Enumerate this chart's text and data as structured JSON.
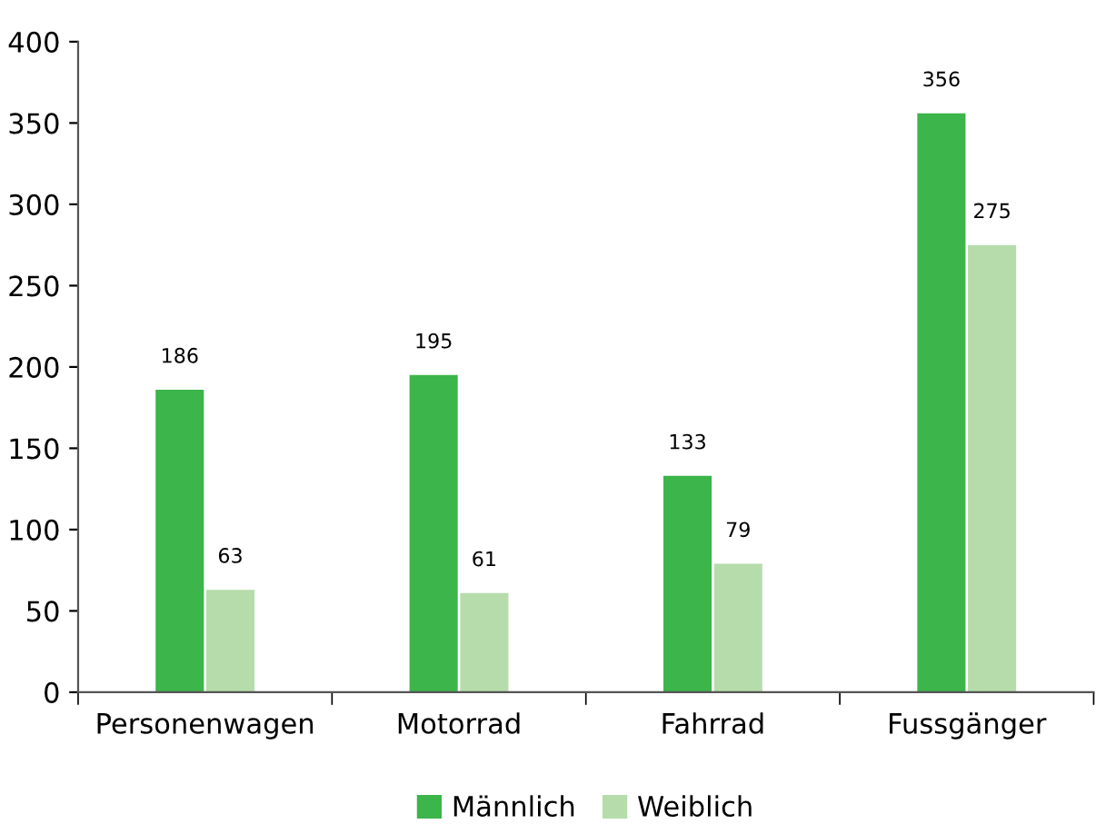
{
  "chart_data": {
    "type": "bar",
    "categories": [
      "Personenwagen",
      "Motorrad",
      "Fahrrad",
      "Fussgänger"
    ],
    "series": [
      {
        "name": "Männlich",
        "color": "#3cb54a",
        "values": [
          186,
          195,
          133,
          356
        ]
      },
      {
        "name": "Weiblich",
        "color": "#b6dcab",
        "values": [
          63,
          61,
          79,
          275
        ]
      }
    ],
    "ylim": [
      0,
      400
    ],
    "yticks": [
      0,
      50,
      100,
      150,
      200,
      250,
      300,
      350,
      400
    ],
    "data_labels": true,
    "grid": false,
    "legend": "bottom"
  }
}
